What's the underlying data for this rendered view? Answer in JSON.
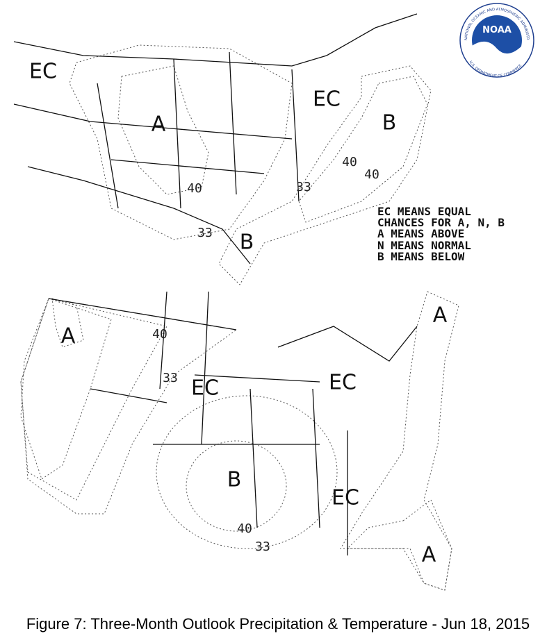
{
  "logo": {
    "name": "NOAA",
    "ring_top": "NATIONAL OCEANIC AND ATMOSPHERIC ADMINISTRATION",
    "ring_bottom": "U.S. DEPARTMENT OF COMMERCE"
  },
  "precipitation_map": {
    "labels": [
      "EC",
      "A",
      "40",
      "33",
      "EC",
      "B",
      "40",
      "40",
      "33",
      "B"
    ],
    "legend": [
      "EC MEANS EQUAL",
      "CHANCES FOR A, N, B",
      "A MEANS ABOVE",
      "N MEANS NORMAL",
      "B MEANS BELOW"
    ]
  },
  "temperature_map": {
    "labels": [
      "A",
      "40",
      "33",
      "EC",
      "EC",
      "B",
      "40",
      "33",
      "EC",
      "A",
      "A"
    ]
  },
  "caption": "Figure 7: Three-Month Outlook Precipitation & Temperature - Jun 18, 2015"
}
